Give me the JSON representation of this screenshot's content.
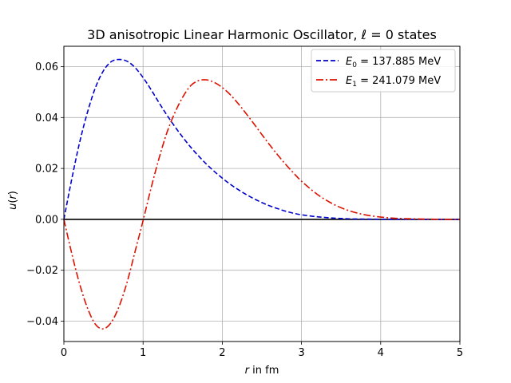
{
  "chart_data": {
    "type": "line",
    "title": {
      "prefix": "3D anisotropic Linear Harmonic Oscillator, ",
      "ell": "ℓ",
      "suffix": " = 0 states"
    },
    "xlabel": {
      "var": "r",
      "rest": " in fm"
    },
    "ylabel": {
      "var": "u",
      "open": "(",
      "arg": "r",
      "close": ")"
    },
    "xlim": [
      0,
      5
    ],
    "ylim": [
      -0.048,
      0.068
    ],
    "xticks": [
      {
        "value": 0,
        "label": "0"
      },
      {
        "value": 1,
        "label": "1"
      },
      {
        "value": 2,
        "label": "2"
      },
      {
        "value": 3,
        "label": "3"
      },
      {
        "value": 4,
        "label": "4"
      },
      {
        "value": 5,
        "label": "5"
      }
    ],
    "yticks": [
      {
        "value": -0.04,
        "label": "−0.04"
      },
      {
        "value": -0.02,
        "label": "−0.02"
      },
      {
        "value": 0.0,
        "label": "0.00"
      },
      {
        "value": 0.02,
        "label": "0.02"
      },
      {
        "value": 0.04,
        "label": "0.04"
      },
      {
        "value": 0.06,
        "label": "0.06"
      }
    ],
    "grid": true,
    "legend_position": "top-right",
    "zero_line_color": "#000000",
    "series": [
      {
        "symbol": "E",
        "sub": "0",
        "value_text": " = 137.885 MeV",
        "color": "#0000cc",
        "dash": "dashed",
        "x": [
          0,
          0.1,
          0.2,
          0.3,
          0.4,
          0.5,
          0.6,
          0.7,
          0.8,
          0.9,
          1.0,
          1.1,
          1.2,
          1.3,
          1.4,
          1.5,
          1.6,
          1.7,
          1.8,
          1.9,
          2.0,
          2.1,
          2.2,
          2.3,
          2.4,
          2.5,
          2.6,
          2.7,
          2.8,
          2.9,
          3.0,
          3.2,
          3.4,
          3.6,
          3.8,
          4.0,
          4.2,
          4.4,
          4.6,
          4.8,
          5.0
        ],
        "y": [
          0,
          0.0159,
          0.0304,
          0.0423,
          0.0519,
          0.0584,
          0.062,
          0.0628,
          0.0621,
          0.0596,
          0.0557,
          0.051,
          0.0459,
          0.041,
          0.0365,
          0.0323,
          0.0284,
          0.0249,
          0.0217,
          0.0188,
          0.0162,
          0.0138,
          0.0117,
          0.0098,
          0.0081,
          0.0066,
          0.0053,
          0.0042,
          0.0032,
          0.0024,
          0.0018,
          0.001,
          0.0005,
          0.0002,
          0.0001,
          4e-05,
          2e-05,
          1e-05,
          0,
          0,
          0
        ]
      },
      {
        "symbol": "E",
        "sub": "1",
        "value_text": " = 241.079 MeV",
        "color": "#dd1100",
        "dash": "dashdot",
        "x": [
          0,
          0.1,
          0.2,
          0.3,
          0.4,
          0.5,
          0.6,
          0.7,
          0.8,
          0.9,
          1.0,
          1.1,
          1.2,
          1.3,
          1.4,
          1.5,
          1.6,
          1.7,
          1.8,
          1.9,
          2.0,
          2.1,
          2.2,
          2.3,
          2.4,
          2.5,
          2.6,
          2.7,
          2.8,
          2.9,
          3.0,
          3.2,
          3.4,
          3.6,
          3.8,
          4.0,
          4.2,
          4.4,
          4.6,
          4.8,
          5.0
        ],
        "y": [
          0,
          -0.0135,
          -0.0255,
          -0.035,
          -0.0413,
          -0.043,
          -0.0404,
          -0.034,
          -0.0245,
          -0.0125,
          -0.0005,
          0.0122,
          0.0238,
          0.034,
          0.0418,
          0.048,
          0.0525,
          0.0545,
          0.0548,
          0.0538,
          0.0518,
          0.049,
          0.0455,
          0.0416,
          0.0375,
          0.0333,
          0.0292,
          0.0253,
          0.0216,
          0.0182,
          0.015,
          0.0098,
          0.006,
          0.0034,
          0.0018,
          0.0009,
          0.0004,
          0.0002,
          0.0001,
          0,
          0
        ]
      }
    ]
  }
}
